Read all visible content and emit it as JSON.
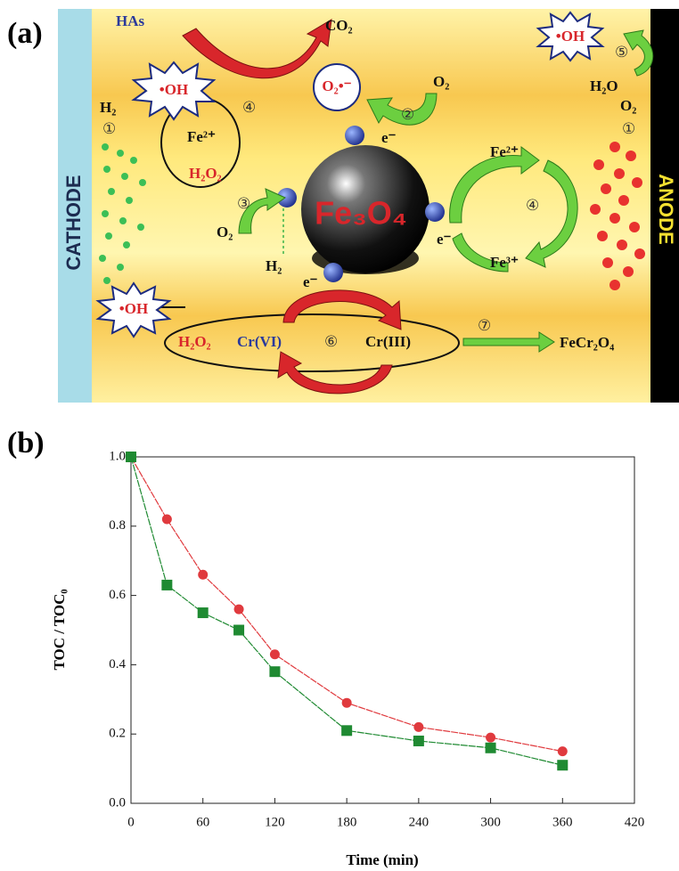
{
  "panel_a": {
    "label": "(a)",
    "texts": [
      "HAs",
      "CO₂",
      "•OH",
      "O₂•⁻",
      "④",
      "②",
      "O₂",
      "e⁻",
      "H₂",
      "①",
      "Fe²⁺",
      "H₂O₂",
      "③",
      "O₂",
      "H₂",
      "e⁻",
      "Fe₃O₄",
      "Fe²⁺",
      "④",
      "e⁻",
      "Fe³⁺",
      "•OH",
      "⑤",
      "H₂O",
      "O₂",
      "①",
      "CATHODE",
      "ANODE",
      "•OH",
      "H₂O₂",
      "Cr(VI)",
      "⑥",
      "Cr(III)",
      "⑦",
      "FeCr₂O₄"
    ]
  },
  "panel_b": {
    "label": "(b)"
  },
  "chart_data": {
    "type": "line",
    "x_label": "Time (min)",
    "y_label": "TOC / TOC₀",
    "x": [
      0,
      30,
      60,
      90,
      120,
      180,
      240,
      300,
      360
    ],
    "series": [
      {
        "color": "#e03a3e",
        "marker": "circle",
        "values": [
          1.0,
          0.82,
          0.66,
          0.56,
          0.43,
          0.29,
          0.22,
          0.19,
          0.15
        ]
      },
      {
        "color": "#1f8a32",
        "marker": "square",
        "values": [
          1.0,
          0.63,
          0.55,
          0.5,
          0.38,
          0.21,
          0.18,
          0.16,
          0.11
        ]
      }
    ],
    "xlim": [
      0,
      420
    ],
    "xticks": [
      0,
      60,
      120,
      180,
      240,
      300,
      360,
      420
    ],
    "ylim": [
      0,
      1.0
    ],
    "yticks": [
      {
        "value": 0,
        "label": "0.0"
      },
      0.2,
      0.4,
      0.6,
      0.8,
      {
        "value": 1.0,
        "label": "1.0"
      }
    ]
  }
}
